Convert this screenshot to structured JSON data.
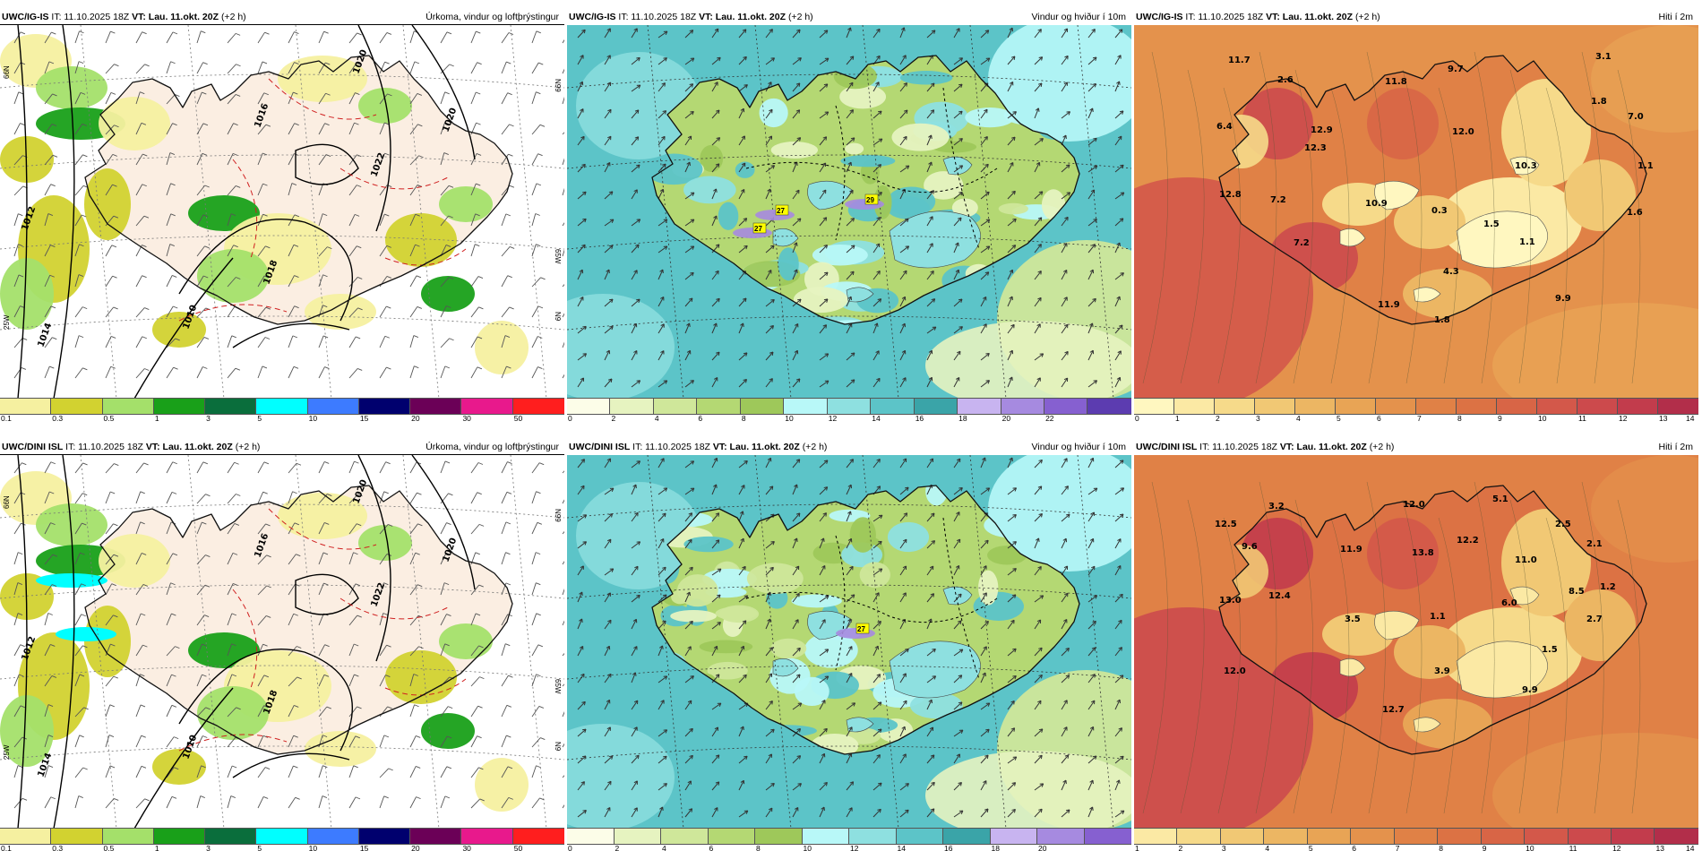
{
  "rows": [
    {
      "panels": [
        {
          "kind": "precip",
          "model": "UWC/IG-IS",
          "it_label": "IT: 11.10.2025 18Z",
          "vt_label": "VT: Lau. 11.okt. 20Z",
          "lead": "(+2 h)",
          "title": "Úrkoma, vindur og loftþrýstingur",
          "isobar_labels": [
            "1016",
            "1020",
            "1022",
            "1012",
            "1018",
            "1014",
            "1010",
            "1020"
          ],
          "edge_labels": [
            "66N",
            "N99",
            "65W",
            "25W",
            "N9"
          ],
          "colorbar": {
            "colors": [
              "#f5f0a0",
              "#d2d230",
              "#a4e06a",
              "#19a019",
              "#0a6e3c",
              "#00ffff",
              "#3d7bff",
              "#00006e",
              "#6b0057",
              "#e8198c",
              "#ff1e1e"
            ],
            "ticks": [
              "0.1",
              "0.3",
              "0.5",
              "1",
              "3",
              "5",
              "10",
              "15",
              "20",
              "30",
              "50"
            ]
          }
        },
        {
          "kind": "wind",
          "model": "UWC/IG-IS",
          "it_label": "IT: 11.10.2025 18Z",
          "vt_label": "VT: Lau. 11.okt. 20Z",
          "lead": "(+2 h)",
          "title": "Vindur og hviður í 10m",
          "gust_labels": [
            "27",
            "27",
            "29"
          ],
          "colorbar": {
            "colors": [
              "#fcfde8",
              "#e6f3c0",
              "#cfe79a",
              "#b4d873",
              "#9ec85a",
              "#b8f8f8",
              "#8ee0e0",
              "#5cc4c8",
              "#3aa4a8",
              "#c8b4f0",
              "#a68ae0",
              "#8660d0",
              "#5c3cb0"
            ],
            "ticks": [
              "0",
              "2",
              "4",
              "6",
              "8",
              "10",
              "12",
              "14",
              "16",
              "18",
              "20",
              "22"
            ]
          }
        },
        {
          "kind": "temp",
          "model": "UWC/IG-IS",
          "it_label": "IT: 11.10.2025 18Z",
          "vt_label": "VT: Lau. 11.okt. 20Z",
          "lead": "(+2 h)",
          "title": "Hiti í 2m",
          "values": [
            "11.7",
            "2.6",
            "9.7",
            "3.1",
            "11.8",
            "1.8",
            "6.4",
            "12.9",
            "12.0",
            "7.0",
            "12.3",
            "10.3",
            "1.1",
            "12.8",
            "7.2",
            "10.9",
            "0.3",
            "1.6",
            "1.5",
            "1.1",
            "7.2",
            "4.3",
            "9.9",
            "11.9",
            "1.8"
          ],
          "colorbar": {
            "colors": [
              "#fff7c0",
              "#fbe9a4",
              "#f6da8a",
              "#f1c874",
              "#ecb663",
              "#e8a455",
              "#e4924c",
              "#e08146",
              "#dc7244",
              "#d86546",
              "#d3584a",
              "#cc4a4c",
              "#c23c4c",
              "#b22e4a"
            ],
            "ticks": [
              "0",
              "1",
              "2",
              "3",
              "4",
              "5",
              "6",
              "7",
              "8",
              "9",
              "10",
              "11",
              "12",
              "13",
              "14"
            ]
          }
        }
      ]
    },
    {
      "panels": [
        {
          "kind": "precip",
          "model": "UWC/DINI ISL",
          "it_label": "IT: 11.10.2025 18Z",
          "vt_label": "VT: Lau. 11.okt. 20Z",
          "lead": "(+2 h)",
          "title": "Úrkoma, vindur og loftþrýstingur",
          "isobar_labels": [
            "1016",
            "1020",
            "1022",
            "1012",
            "1018",
            "1014",
            "1010",
            "1020"
          ],
          "edge_labels": [
            "66N",
            "N99",
            "65W",
            "25W",
            "N9"
          ],
          "colorbar": {
            "colors": [
              "#f5f0a0",
              "#d2d230",
              "#a4e06a",
              "#19a019",
              "#0a6e3c",
              "#00ffff",
              "#3d7bff",
              "#00006e",
              "#6b0057",
              "#e8198c",
              "#ff1e1e"
            ],
            "ticks": [
              "0.1",
              "0.3",
              "0.5",
              "1",
              "3",
              "5",
              "10",
              "15",
              "20",
              "30",
              "50"
            ]
          }
        },
        {
          "kind": "wind",
          "model": "UWC/DINI ISL",
          "it_label": "IT: 11.10.2025 18Z",
          "vt_label": "VT: Lau. 11.okt. 20Z",
          "lead": "(+2 h)",
          "title": "Vindur og hviður í 10m",
          "gust_labels": [
            "27"
          ],
          "colorbar": {
            "colors": [
              "#fcfde8",
              "#e6f3c0",
              "#cfe79a",
              "#b4d873",
              "#9ec85a",
              "#b8f8f8",
              "#8ee0e0",
              "#5cc4c8",
              "#3aa4a8",
              "#c8b4f0",
              "#a68ae0",
              "#8660d0"
            ],
            "ticks": [
              "0",
              "2",
              "4",
              "6",
              "8",
              "10",
              "12",
              "14",
              "16",
              "18",
              "20"
            ]
          }
        },
        {
          "kind": "temp",
          "model": "UWC/DINI ISL",
          "it_label": "IT: 11.10.2025 18Z",
          "vt_label": "VT: Lau. 11.okt. 20Z",
          "lead": "(+2 h)",
          "title": "Hiti í 2m",
          "values": [
            "3.2",
            "12.0",
            "5.1",
            "12.5",
            "2.5",
            "9.6",
            "11.9",
            "13.8",
            "12.2",
            "2.1",
            "11.0",
            "1.2",
            "13.0",
            "12.4",
            "6.0",
            "8.5",
            "3.5",
            "1.1",
            "2.7",
            "1.5",
            "12.0",
            "3.9",
            "9.9",
            "12.7"
          ],
          "colorbar": {
            "colors": [
              "#fbe9a4",
              "#f6da8a",
              "#f1c874",
              "#ecb663",
              "#e8a455",
              "#e4924c",
              "#e08146",
              "#dc7244",
              "#d86546",
              "#d3584a",
              "#cc4a4c",
              "#c23c4c",
              "#b22e4a"
            ],
            "ticks": [
              "1",
              "2",
              "3",
              "4",
              "5",
              "6",
              "7",
              "8",
              "9",
              "10",
              "11",
              "12",
              "13",
              "14"
            ]
          }
        }
      ]
    }
  ]
}
